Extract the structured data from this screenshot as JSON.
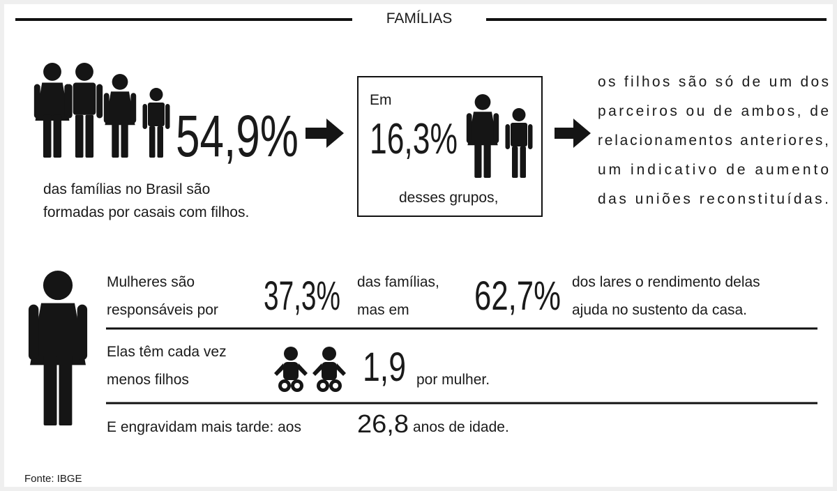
{
  "header": {
    "title": "FAMÍLIAS"
  },
  "intro": {
    "figure": "54,9%",
    "caption": [
      "das famílias no Brasil são",
      "formadas por casais com filhos."
    ]
  },
  "box": {
    "lead": "Em",
    "figure": "16,3%",
    "caption": "desses grupos,"
  },
  "conclusion": {
    "lines": [
      "os filhos são só de um dos",
      "parceiros ou de ambos, de",
      "relacionamentos anteriores,",
      "um indicativo de aumento",
      "das uniões reconstituídas."
    ]
  },
  "women": {
    "responsible": {
      "text": [
        "Mulheres são",
        "responsáveis por"
      ],
      "figure": "37,3%",
      "middle": [
        "das famílias,",
        "mas em"
      ],
      "figure2": "62,7%",
      "end": [
        "dos lares o rendimento delas",
        "ajuda no sustento da casa."
      ]
    },
    "children": {
      "text": [
        "Elas têm cada vez",
        "menos filhos"
      ],
      "figure": "1,9",
      "end": "por mulher."
    },
    "pregnancy": {
      "text": "E engravidam mais tarde: aos",
      "figure": "26,8",
      "end": "anos de idade."
    }
  },
  "source": "Fonte: IBGE"
}
